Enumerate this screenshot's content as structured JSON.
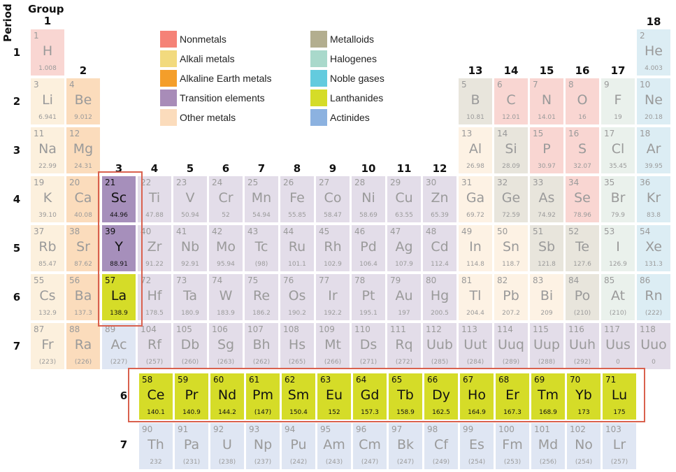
{
  "titles": {
    "period": "Period",
    "group": "Group"
  },
  "colors": {
    "nonmetal": "#f9d6d2",
    "alkali": "#fcf0dd",
    "alkaline": "#fbdcbc",
    "transition": "#e3dde9",
    "transition_hl": "#a68fbb",
    "other": "#fdf2e4",
    "metalloid": "#e8e5dc",
    "halogen": "#eaf1ec",
    "noble": "#dcedf4",
    "lanthanide": "#d5dc28",
    "actinide": "#dfe6f3",
    "highlight_border": "#d9614e"
  },
  "legend": [
    {
      "label": "Nonmetals",
      "color": "#f58277"
    },
    {
      "label": "Alkali metals",
      "color": "#f2da7e"
    },
    {
      "label": "Alkaline Earth metals",
      "color": "#f49e2a"
    },
    {
      "label": "Transition elements",
      "color": "#a88cb8"
    },
    {
      "label": "Other metals",
      "color": "#fbdcbc"
    },
    {
      "label": "Metalloids",
      "color": "#b3ae8f"
    },
    {
      "label": "Halogenes",
      "color": "#a9d9cb"
    },
    {
      "label": "Noble gases",
      "color": "#63cbde"
    },
    {
      "label": "Lanthanides",
      "color": "#d5dc28"
    },
    {
      "label": "Actinides",
      "color": "#8cb2e0"
    }
  ],
  "group_labels": [
    "1",
    "2",
    "3",
    "4",
    "5",
    "6",
    "7",
    "8",
    "9",
    "10",
    "11",
    "12",
    "13",
    "14",
    "15",
    "16",
    "17",
    "18"
  ],
  "period_labels": [
    "1",
    "2",
    "3",
    "4",
    "5",
    "6",
    "7"
  ],
  "fblock_period_labels": [
    "6",
    "7"
  ],
  "elements": [
    {
      "n": "1",
      "s": "H",
      "m": "1.008",
      "g": 1,
      "p": 1,
      "c": "nonmetal"
    },
    {
      "n": "2",
      "s": "He",
      "m": "4.003",
      "g": 18,
      "p": 1,
      "c": "noble"
    },
    {
      "n": "3",
      "s": "Li",
      "m": "6.941",
      "g": 1,
      "p": 2,
      "c": "alkali"
    },
    {
      "n": "4",
      "s": "Be",
      "m": "9.012",
      "g": 2,
      "p": 2,
      "c": "alkaline"
    },
    {
      "n": "5",
      "s": "B",
      "m": "10.81",
      "g": 13,
      "p": 2,
      "c": "metalloid"
    },
    {
      "n": "6",
      "s": "C",
      "m": "12.01",
      "g": 14,
      "p": 2,
      "c": "nonmetal"
    },
    {
      "n": "7",
      "s": "N",
      "m": "14.01",
      "g": 15,
      "p": 2,
      "c": "nonmetal"
    },
    {
      "n": "8",
      "s": "O",
      "m": "16",
      "g": 16,
      "p": 2,
      "c": "nonmetal"
    },
    {
      "n": "9",
      "s": "F",
      "m": "19",
      "g": 17,
      "p": 2,
      "c": "halogen"
    },
    {
      "n": "10",
      "s": "Ne",
      "m": "20.18",
      "g": 18,
      "p": 2,
      "c": "noble"
    },
    {
      "n": "11",
      "s": "Na",
      "m": "22.99",
      "g": 1,
      "p": 3,
      "c": "alkali"
    },
    {
      "n": "12",
      "s": "Mg",
      "m": "24.31",
      "g": 2,
      "p": 3,
      "c": "alkaline"
    },
    {
      "n": "13",
      "s": "Al",
      "m": "26.98",
      "g": 13,
      "p": 3,
      "c": "other"
    },
    {
      "n": "14",
      "s": "Si",
      "m": "28.09",
      "g": 14,
      "p": 3,
      "c": "metalloid"
    },
    {
      "n": "15",
      "s": "P",
      "m": "30.97",
      "g": 15,
      "p": 3,
      "c": "nonmetal"
    },
    {
      "n": "16",
      "s": "S",
      "m": "32.07",
      "g": 16,
      "p": 3,
      "c": "nonmetal"
    },
    {
      "n": "17",
      "s": "Cl",
      "m": "35.45",
      "g": 17,
      "p": 3,
      "c": "halogen"
    },
    {
      "n": "18",
      "s": "Ar",
      "m": "39.95",
      "g": 18,
      "p": 3,
      "c": "noble"
    },
    {
      "n": "19",
      "s": "K",
      "m": "39.10",
      "g": 1,
      "p": 4,
      "c": "alkali"
    },
    {
      "n": "20",
      "s": "Ca",
      "m": "40.08",
      "g": 2,
      "p": 4,
      "c": "alkaline"
    },
    {
      "n": "21",
      "s": "Sc",
      "m": "44.96",
      "g": 3,
      "p": 4,
      "c": "transition_hl",
      "hl": true
    },
    {
      "n": "22",
      "s": "Ti",
      "m": "47.88",
      "g": 4,
      "p": 4,
      "c": "transition"
    },
    {
      "n": "23",
      "s": "V",
      "m": "50.94",
      "g": 5,
      "p": 4,
      "c": "transition"
    },
    {
      "n": "24",
      "s": "Cr",
      "m": "52",
      "g": 6,
      "p": 4,
      "c": "transition"
    },
    {
      "n": "25",
      "s": "Mn",
      "m": "54.94",
      "g": 7,
      "p": 4,
      "c": "transition"
    },
    {
      "n": "26",
      "s": "Fe",
      "m": "55.85",
      "g": 8,
      "p": 4,
      "c": "transition"
    },
    {
      "n": "27",
      "s": "Co",
      "m": "58.47",
      "g": 9,
      "p": 4,
      "c": "transition"
    },
    {
      "n": "28",
      "s": "Ni",
      "m": "58.69",
      "g": 10,
      "p": 4,
      "c": "transition"
    },
    {
      "n": "29",
      "s": "Cu",
      "m": "63.55",
      "g": 11,
      "p": 4,
      "c": "transition"
    },
    {
      "n": "30",
      "s": "Zn",
      "m": "65.39",
      "g": 12,
      "p": 4,
      "c": "transition"
    },
    {
      "n": "31",
      "s": "Ga",
      "m": "69.72",
      "g": 13,
      "p": 4,
      "c": "other"
    },
    {
      "n": "32",
      "s": "Ge",
      "m": "72.59",
      "g": 14,
      "p": 4,
      "c": "metalloid"
    },
    {
      "n": "33",
      "s": "As",
      "m": "74.92",
      "g": 15,
      "p": 4,
      "c": "metalloid"
    },
    {
      "n": "34",
      "s": "Se",
      "m": "78.96",
      "g": 16,
      "p": 4,
      "c": "nonmetal"
    },
    {
      "n": "35",
      "s": "Br",
      "m": "79.9",
      "g": 17,
      "p": 4,
      "c": "halogen"
    },
    {
      "n": "36",
      "s": "Kr",
      "m": "83.8",
      "g": 18,
      "p": 4,
      "c": "noble"
    },
    {
      "n": "37",
      "s": "Rb",
      "m": "85.47",
      "g": 1,
      "p": 5,
      "c": "alkali"
    },
    {
      "n": "38",
      "s": "Sr",
      "m": "87.62",
      "g": 2,
      "p": 5,
      "c": "alkaline"
    },
    {
      "n": "39",
      "s": "Y",
      "m": "88.91",
      "g": 3,
      "p": 5,
      "c": "transition_hl",
      "hl": true
    },
    {
      "n": "40",
      "s": "Zr",
      "m": "91.22",
      "g": 4,
      "p": 5,
      "c": "transition"
    },
    {
      "n": "41",
      "s": "Nb",
      "m": "92.91",
      "g": 5,
      "p": 5,
      "c": "transition"
    },
    {
      "n": "42",
      "s": "Mo",
      "m": "95.94",
      "g": 6,
      "p": 5,
      "c": "transition"
    },
    {
      "n": "43",
      "s": "Tc",
      "m": "(98)",
      "g": 7,
      "p": 5,
      "c": "transition"
    },
    {
      "n": "44",
      "s": "Ru",
      "m": "101.1",
      "g": 8,
      "p": 5,
      "c": "transition"
    },
    {
      "n": "45",
      "s": "Rh",
      "m": "102.9",
      "g": 9,
      "p": 5,
      "c": "transition"
    },
    {
      "n": "46",
      "s": "Pd",
      "m": "106.4",
      "g": 10,
      "p": 5,
      "c": "transition"
    },
    {
      "n": "47",
      "s": "Ag",
      "m": "107.9",
      "g": 11,
      "p": 5,
      "c": "transition"
    },
    {
      "n": "48",
      "s": "Cd",
      "m": "112.4",
      "g": 12,
      "p": 5,
      "c": "transition"
    },
    {
      "n": "49",
      "s": "In",
      "m": "114.8",
      "g": 13,
      "p": 5,
      "c": "other"
    },
    {
      "n": "50",
      "s": "Sn",
      "m": "118.7",
      "g": 14,
      "p": 5,
      "c": "other"
    },
    {
      "n": "51",
      "s": "Sb",
      "m": "121.8",
      "g": 15,
      "p": 5,
      "c": "metalloid"
    },
    {
      "n": "52",
      "s": "Te",
      "m": "127.6",
      "g": 16,
      "p": 5,
      "c": "metalloid"
    },
    {
      "n": "53",
      "s": "I",
      "m": "126.9",
      "g": 17,
      "p": 5,
      "c": "halogen"
    },
    {
      "n": "54",
      "s": "Xe",
      "m": "131.3",
      "g": 18,
      "p": 5,
      "c": "noble"
    },
    {
      "n": "55",
      "s": "Cs",
      "m": "132.9",
      "g": 1,
      "p": 6,
      "c": "alkali"
    },
    {
      "n": "56",
      "s": "Ba",
      "m": "137.3",
      "g": 2,
      "p": 6,
      "c": "alkaline"
    },
    {
      "n": "57",
      "s": "La",
      "m": "138.9",
      "g": 3,
      "p": 6,
      "c": "lanthanide",
      "hl": true
    },
    {
      "n": "72",
      "s": "Hf",
      "m": "178.5",
      "g": 4,
      "p": 6,
      "c": "transition"
    },
    {
      "n": "73",
      "s": "Ta",
      "m": "180.9",
      "g": 5,
      "p": 6,
      "c": "transition"
    },
    {
      "n": "74",
      "s": "W",
      "m": "183.9",
      "g": 6,
      "p": 6,
      "c": "transition"
    },
    {
      "n": "75",
      "s": "Re",
      "m": "186.2",
      "g": 7,
      "p": 6,
      "c": "transition"
    },
    {
      "n": "76",
      "s": "Os",
      "m": "190.2",
      "g": 8,
      "p": 6,
      "c": "transition"
    },
    {
      "n": "77",
      "s": "Ir",
      "m": "192.2",
      "g": 9,
      "p": 6,
      "c": "transition"
    },
    {
      "n": "78",
      "s": "Pt",
      "m": "195.1",
      "g": 10,
      "p": 6,
      "c": "transition"
    },
    {
      "n": "79",
      "s": "Au",
      "m": "197",
      "g": 11,
      "p": 6,
      "c": "transition"
    },
    {
      "n": "80",
      "s": "Hg",
      "m": "200.5",
      "g": 12,
      "p": 6,
      "c": "transition"
    },
    {
      "n": "81",
      "s": "Tl",
      "m": "204.4",
      "g": 13,
      "p": 6,
      "c": "other"
    },
    {
      "n": "82",
      "s": "Pb",
      "m": "207.2",
      "g": 14,
      "p": 6,
      "c": "other"
    },
    {
      "n": "83",
      "s": "Bi",
      "m": "209",
      "g": 15,
      "p": 6,
      "c": "other"
    },
    {
      "n": "84",
      "s": "Po",
      "m": "(210)",
      "g": 16,
      "p": 6,
      "c": "metalloid"
    },
    {
      "n": "85",
      "s": "At",
      "m": "(210)",
      "g": 17,
      "p": 6,
      "c": "halogen"
    },
    {
      "n": "86",
      "s": "Rn",
      "m": "(222)",
      "g": 18,
      "p": 6,
      "c": "noble"
    },
    {
      "n": "87",
      "s": "Fr",
      "m": "(223)",
      "g": 1,
      "p": 7,
      "c": "alkali"
    },
    {
      "n": "88",
      "s": "Ra",
      "m": "(226)",
      "g": 2,
      "p": 7,
      "c": "alkaline"
    },
    {
      "n": "89",
      "s": "Ac",
      "m": "(227)",
      "g": 3,
      "p": 7,
      "c": "actinide"
    },
    {
      "n": "104",
      "s": "Rf",
      "m": "(257)",
      "g": 4,
      "p": 7,
      "c": "transition"
    },
    {
      "n": "105",
      "s": "Db",
      "m": "(260)",
      "g": 5,
      "p": 7,
      "c": "transition"
    },
    {
      "n": "106",
      "s": "Sg",
      "m": "(263)",
      "g": 6,
      "p": 7,
      "c": "transition"
    },
    {
      "n": "107",
      "s": "Bh",
      "m": "(262)",
      "g": 7,
      "p": 7,
      "c": "transition"
    },
    {
      "n": "108",
      "s": "Hs",
      "m": "(265)",
      "g": 8,
      "p": 7,
      "c": "transition"
    },
    {
      "n": "109",
      "s": "Mt",
      "m": "(266)",
      "g": 9,
      "p": 7,
      "c": "transition"
    },
    {
      "n": "110",
      "s": "Ds",
      "m": "(271)",
      "g": 10,
      "p": 7,
      "c": "transition"
    },
    {
      "n": "111",
      "s": "Rq",
      "m": "(272)",
      "g": 11,
      "p": 7,
      "c": "transition"
    },
    {
      "n": "112",
      "s": "Uub",
      "m": "(285)",
      "g": 12,
      "p": 7,
      "c": "transition"
    },
    {
      "n": "113",
      "s": "Uut",
      "m": "(284)",
      "g": 13,
      "p": 7,
      "c": "transition"
    },
    {
      "n": "114",
      "s": "Uuq",
      "m": "(289)",
      "g": 14,
      "p": 7,
      "c": "transition"
    },
    {
      "n": "115",
      "s": "Uup",
      "m": "(288)",
      "g": 15,
      "p": 7,
      "c": "transition"
    },
    {
      "n": "116",
      "s": "Uuh",
      "m": "(292)",
      "g": 16,
      "p": 7,
      "c": "transition"
    },
    {
      "n": "117",
      "s": "Uus",
      "m": "0",
      "g": 17,
      "p": 7,
      "c": "transition"
    },
    {
      "n": "118",
      "s": "Uuo",
      "m": "0",
      "g": 18,
      "p": 7,
      "c": "transition"
    }
  ],
  "lanthanides": [
    {
      "n": "58",
      "s": "Ce",
      "m": "140.1"
    },
    {
      "n": "59",
      "s": "Pr",
      "m": "140.9"
    },
    {
      "n": "60",
      "s": "Nd",
      "m": "144.2"
    },
    {
      "n": "61",
      "s": "Pm",
      "m": "(147)"
    },
    {
      "n": "62",
      "s": "Sm",
      "m": "150.4"
    },
    {
      "n": "63",
      "s": "Eu",
      "m": "152"
    },
    {
      "n": "64",
      "s": "Gd",
      "m": "157.3"
    },
    {
      "n": "65",
      "s": "Tb",
      "m": "158.9"
    },
    {
      "n": "66",
      "s": "Dy",
      "m": "162.5"
    },
    {
      "n": "67",
      "s": "Ho",
      "m": "164.9"
    },
    {
      "n": "68",
      "s": "Er",
      "m": "167.3"
    },
    {
      "n": "69",
      "s": "Tm",
      "m": "168.9"
    },
    {
      "n": "70",
      "s": "Yb",
      "m": "173"
    },
    {
      "n": "71",
      "s": "Lu",
      "m": "175"
    }
  ],
  "actinides": [
    {
      "n": "90",
      "s": "Th",
      "m": "232"
    },
    {
      "n": "91",
      "s": "Pa",
      "m": "(231)"
    },
    {
      "n": "92",
      "s": "U",
      "m": "(238)"
    },
    {
      "n": "93",
      "s": "Np",
      "m": "(237)"
    },
    {
      "n": "94",
      "s": "Pu",
      "m": "(242)"
    },
    {
      "n": "95",
      "s": "Am",
      "m": "(243)"
    },
    {
      "n": "96",
      "s": "Cm",
      "m": "(247)"
    },
    {
      "n": "97",
      "s": "Bk",
      "m": "(247)"
    },
    {
      "n": "98",
      "s": "Cf",
      "m": "(249)"
    },
    {
      "n": "99",
      "s": "Es",
      "m": "(254)"
    },
    {
      "n": "100",
      "s": "Fm",
      "m": "(253)"
    },
    {
      "n": "101",
      "s": "Md",
      "m": "(256)"
    },
    {
      "n": "102",
      "s": "No",
      "m": "(254)"
    },
    {
      "n": "103",
      "s": "Lr",
      "m": "(257)"
    }
  ]
}
